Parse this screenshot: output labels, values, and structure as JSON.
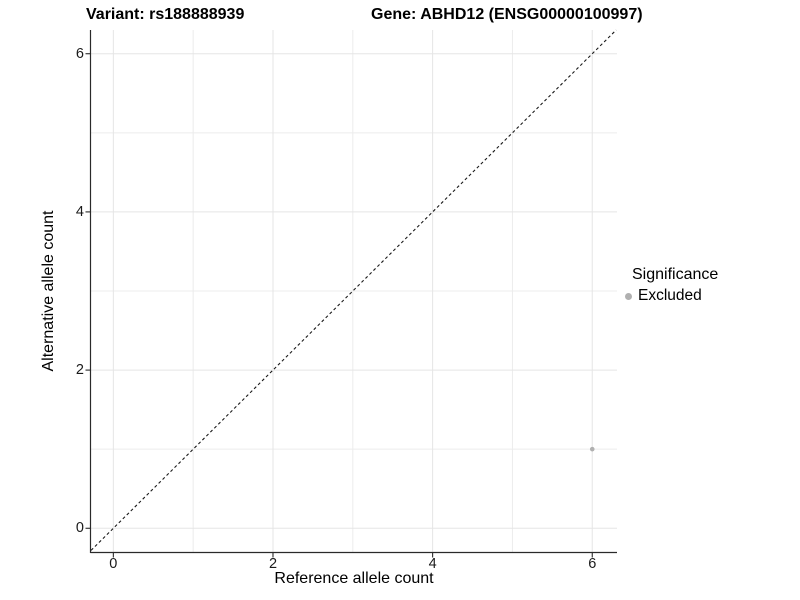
{
  "chart_data": {
    "type": "scatter",
    "title_left": "Variant: rs188888939",
    "title_right": "Gene: ABHD12 (ENSG00000100997)",
    "xlabel": "Reference allele count",
    "ylabel": "Alternative allele count",
    "xlim": [
      -0.28,
      6.31
    ],
    "ylim": [
      -0.3,
      6.3
    ],
    "xticks": [
      0,
      2,
      4,
      6
    ],
    "yticks": [
      0,
      2,
      4,
      6
    ],
    "minor_xticks": [
      1,
      3,
      5
    ],
    "minor_yticks": [
      1,
      3,
      5
    ],
    "grid": true,
    "reference_line": {
      "type": "identity y = x",
      "linestyle": "dashed",
      "color": "#1a1a1a",
      "x0": -0.28,
      "y0": -0.28,
      "x1": 6.3,
      "y1": 6.3
    },
    "series": [
      {
        "name": "Excluded",
        "color": "#b0b0b0",
        "points": [
          {
            "x": 6,
            "y": 1
          }
        ]
      }
    ],
    "legend": {
      "title": "Significance",
      "position": "right",
      "entries": [
        {
          "label": "Excluded",
          "color": "#b0b0b0"
        }
      ]
    }
  },
  "colors": {
    "background": "#ffffff",
    "axis": "#2a2a2a",
    "grid_major": "#e5e5e5",
    "grid_minor": "#ececec",
    "text": "#000000"
  }
}
